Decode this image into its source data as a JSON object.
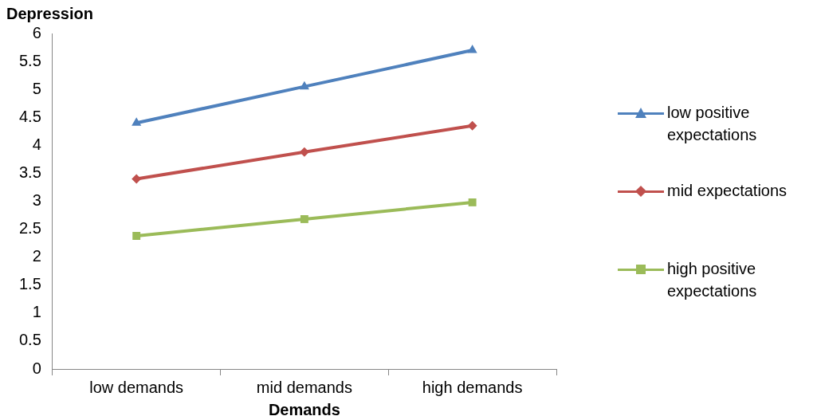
{
  "chart_data": {
    "type": "line",
    "ylabel": "Depression",
    "xlabel": "Demands",
    "categories": [
      "low demands",
      "mid demands",
      "high demands"
    ],
    "series": [
      {
        "name": "low positive expectations",
        "color": "#4f81bd",
        "marker": "triangle",
        "values": [
          4.4,
          5.05,
          5.7
        ]
      },
      {
        "name": "mid expectations",
        "color": "#c0504d",
        "marker": "diamond",
        "values": [
          3.4,
          3.88,
          4.35
        ]
      },
      {
        "name": "high positive expectations",
        "color": "#9bbb59",
        "marker": "square",
        "values": [
          2.38,
          2.68,
          2.98
        ]
      }
    ],
    "ylim": [
      0,
      6
    ],
    "yticks": [
      0,
      0.5,
      1,
      1.5,
      2,
      2.5,
      3,
      3.5,
      4,
      4.5,
      5,
      5.5,
      6
    ],
    "grid": false,
    "legend": "right",
    "line_style": "solid"
  }
}
